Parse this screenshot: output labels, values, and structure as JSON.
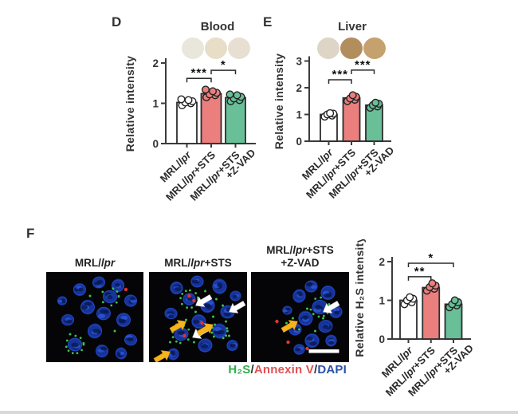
{
  "panels": {
    "d": {
      "letter": "D",
      "title": "Blood",
      "dot_colors": [
        "#e9e6dc",
        "#e8ddc6",
        "#e7e0d2"
      ]
    },
    "e": {
      "letter": "E",
      "title": "Liver",
      "dot_colors": [
        "#ded5c7",
        "#b28e5e",
        "#c5a16d"
      ]
    },
    "f": {
      "letter": "F",
      "images": [
        {
          "label": "MRL/lpr"
        },
        {
          "label": "MRL/lpr+STS"
        },
        {
          "label": "MRL/lpr+STS\n+Z-VAD"
        }
      ],
      "legend_parts": [
        {
          "text": "H₂S",
          "color": "#2fae4a"
        },
        {
          "text": "/",
          "color": "#333333"
        },
        {
          "text": "Annexin V",
          "color": "#e05252"
        },
        {
          "text": "/",
          "color": "#333333"
        },
        {
          "text": "DAPI",
          "color": "#2b50a8"
        }
      ]
    }
  },
  "chart_data": [
    {
      "id": "blood",
      "type": "bar",
      "title": "Blood",
      "xlabel": "",
      "ylabel": "Relative intensity",
      "ylim": [
        0,
        2
      ],
      "yticks": [
        0,
        1,
        2
      ],
      "categories": [
        "MRL/lpr",
        "MRL/lpr+STS",
        "MRL/lpr+STS\n+Z-VAD"
      ],
      "values": [
        1.02,
        1.24,
        1.14
      ],
      "points": [
        [
          0.95,
          1.0,
          1.02,
          1.05,
          1.08,
          1.1
        ],
        [
          1.15,
          1.2,
          1.22,
          1.26,
          1.3,
          1.34
        ],
        [
          1.05,
          1.08,
          1.12,
          1.16,
          1.2,
          1.22
        ]
      ],
      "bar_colors": [
        "#ffffff",
        "#ea7f7e",
        "#68bf98"
      ],
      "significance": [
        {
          "groups": [
            0,
            1
          ],
          "label": "***",
          "y": 1.62
        },
        {
          "groups": [
            1,
            2
          ],
          "label": "*",
          "y": 1.82
        }
      ]
    },
    {
      "id": "liver",
      "type": "bar",
      "title": "Liver",
      "xlabel": "",
      "ylabel": "Relative intensity",
      "ylim": [
        0,
        3
      ],
      "yticks": [
        0,
        1,
        2,
        3
      ],
      "categories": [
        "MRL/lpr",
        "MRL/lpr+STS",
        "MRL/lpr+STS\n+Z-VAD"
      ],
      "values": [
        1.0,
        1.62,
        1.35
      ],
      "points": [
        [
          0.92,
          0.96,
          1.0,
          1.03,
          1.05
        ],
        [
          1.5,
          1.55,
          1.6,
          1.66,
          1.72
        ],
        [
          1.25,
          1.3,
          1.35,
          1.4,
          1.44
        ]
      ],
      "bar_colors": [
        "#ffffff",
        "#ea7f7e",
        "#68bf98"
      ],
      "significance": [
        {
          "groups": [
            0,
            1
          ],
          "label": "***",
          "y": 2.3
        },
        {
          "groups": [
            1,
            2
          ],
          "label": "***",
          "y": 2.66
        }
      ]
    },
    {
      "id": "h2s",
      "type": "bar",
      "title": "",
      "xlabel": "",
      "ylabel": "Relative H₂S intensity",
      "ylim": [
        0,
        2
      ],
      "yticks": [
        0,
        1,
        2
      ],
      "categories": [
        "MRL/lpr",
        "MRL/lpr+STS",
        "MRL/lpr+STS\n+Z-VAD"
      ],
      "values": [
        1.0,
        1.33,
        0.9
      ],
      "points": [
        [
          0.9,
          0.95,
          1.0,
          1.04,
          1.08
        ],
        [
          1.25,
          1.3,
          1.34,
          1.38,
          1.44
        ],
        [
          0.82,
          0.87,
          0.9,
          0.95,
          1.0
        ]
      ],
      "bar_colors": [
        "#ffffff",
        "#ea7f7e",
        "#68bf98"
      ],
      "significance": [
        {
          "groups": [
            0,
            1
          ],
          "label": "**",
          "y": 1.61
        },
        {
          "groups": [
            0,
            2
          ],
          "label": "*",
          "y": 1.96
        }
      ]
    }
  ]
}
